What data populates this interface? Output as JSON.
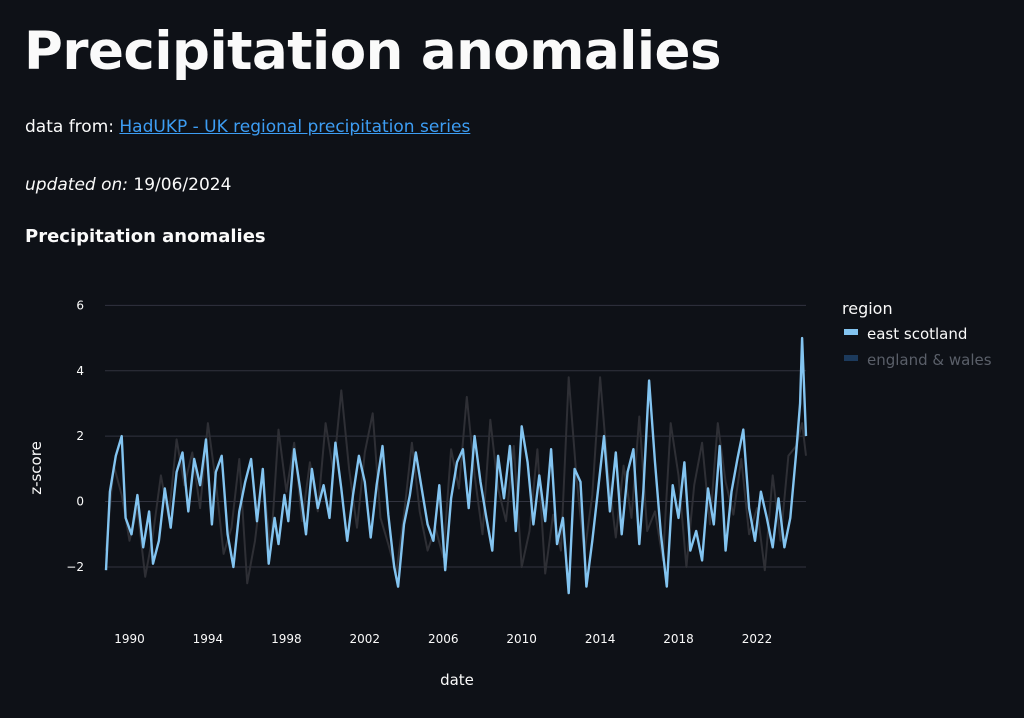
{
  "page": {
    "title": "Precipitation anomalies",
    "source_prefix": "data from: ",
    "source_link": "HadUKP - UK regional precipitation series",
    "updated_label": "updated on:",
    "updated_date": " 19/06/2024",
    "chart_title": "Precipitation anomalies"
  },
  "colors": {
    "background": "#0e1117",
    "link": "#3d9df3",
    "east_scotland": "#83c4f0",
    "england_wales": "#2e2f35",
    "grid": "#31333f"
  },
  "chart_data": {
    "type": "line",
    "xlabel": "date",
    "ylabel": "z-score",
    "xlim": [
      1988.75,
      2024.5
    ],
    "ylim": [
      -3.5,
      6.5
    ],
    "x_ticks": [
      "1990",
      "1994",
      "1998",
      "2002",
      "2006",
      "2010",
      "2014",
      "2018",
      "2022"
    ],
    "y_ticks": [
      "−2",
      "0",
      "2",
      "4",
      "6"
    ],
    "grid": "horizontal",
    "legend": {
      "title": "region",
      "placement": "right",
      "entries": [
        {
          "name": "east scotland",
          "active": true
        },
        {
          "name": "england & wales",
          "active": false
        }
      ]
    },
    "series": [
      {
        "name": "east scotland",
        "x": [
          1988.8,
          1989.0,
          1989.3,
          1989.6,
          1989.8,
          1990.1,
          1990.4,
          1990.7,
          1991.0,
          1991.2,
          1991.5,
          1991.8,
          1992.1,
          1992.4,
          1992.7,
          1993.0,
          1993.3,
          1993.6,
          1993.9,
          1994.2,
          1994.4,
          1994.7,
          1995.0,
          1995.3,
          1995.6,
          1995.9,
          1996.2,
          1996.5,
          1996.8,
          1997.1,
          1997.4,
          1997.6,
          1997.9,
          1998.1,
          1998.4,
          1998.7,
          1999.0,
          1999.3,
          1999.6,
          1999.9,
          2000.2,
          2000.5,
          2000.8,
          2001.1,
          2001.4,
          2001.7,
          2002.0,
          2002.3,
          2002.6,
          2002.9,
          2003.2,
          2003.5,
          2003.7,
          2004.0,
          2004.3,
          2004.6,
          2004.9,
          2005.2,
          2005.5,
          2005.8,
          2006.1,
          2006.4,
          2006.7,
          2007.0,
          2007.3,
          2007.6,
          2007.9,
          2008.2,
          2008.5,
          2008.8,
          2009.1,
          2009.4,
          2009.7,
          2010.0,
          2010.3,
          2010.6,
          2010.9,
          2011.2,
          2011.5,
          2011.8,
          2012.1,
          2012.4,
          2012.7,
          2013.0,
          2013.3,
          2013.6,
          2013.9,
          2014.2,
          2014.5,
          2014.8,
          2015.1,
          2015.4,
          2015.7,
          2016.0,
          2016.2,
          2016.5,
          2016.8,
          2017.1,
          2017.4,
          2017.7,
          2018.0,
          2018.3,
          2018.6,
          2018.9,
          2019.2,
          2019.5,
          2019.8,
          2020.1,
          2020.4,
          2020.7,
          2021.0,
          2021.3,
          2021.6,
          2021.9,
          2022.2,
          2022.5,
          2022.8,
          2023.1,
          2023.4,
          2023.7,
          2024.0,
          2024.2,
          2024.3,
          2024.5
        ],
        "y": [
          -2.1,
          0.3,
          1.4,
          2.0,
          -0.5,
          -1.0,
          0.2,
          -1.4,
          -0.3,
          -1.9,
          -1.2,
          0.4,
          -0.8,
          0.9,
          1.5,
          -0.3,
          1.3,
          0.5,
          1.9,
          -0.7,
          0.9,
          1.4,
          -1.0,
          -2.0,
          -0.3,
          0.6,
          1.3,
          -0.6,
          1.0,
          -1.9,
          -0.5,
          -1.3,
          0.2,
          -0.6,
          1.6,
          0.4,
          -1.0,
          1.0,
          -0.2,
          0.5,
          -0.5,
          1.8,
          0.4,
          -1.2,
          0.2,
          1.4,
          0.6,
          -1.1,
          0.5,
          1.7,
          -0.4,
          -2.0,
          -2.6,
          -0.7,
          0.2,
          1.5,
          0.4,
          -0.7,
          -1.2,
          0.5,
          -2.1,
          0.1,
          1.2,
          1.6,
          -0.2,
          2.0,
          0.6,
          -0.5,
          -1.5,
          1.4,
          0.1,
          1.7,
          -0.9,
          2.3,
          1.2,
          -0.7,
          0.8,
          -0.6,
          1.6,
          -1.3,
          -0.5,
          -2.8,
          1.0,
          0.6,
          -2.6,
          -1.2,
          0.4,
          2.0,
          -0.3,
          1.5,
          -1.0,
          0.9,
          1.6,
          -1.3,
          0.3,
          3.7,
          1.2,
          -1.0,
          -2.6,
          0.5,
          -0.5,
          1.2,
          -1.5,
          -0.9,
          -1.8,
          0.4,
          -0.7,
          1.7,
          -1.5,
          0.3,
          1.3,
          2.2,
          -0.2,
          -1.2,
          0.3,
          -0.5,
          -1.4,
          0.1,
          -1.4,
          -0.5,
          1.5,
          3.0,
          5.0,
          2.0
        ]
      },
      {
        "name": "england & wales",
        "x": [
          1988.8,
          1989.2,
          1989.6,
          1990.0,
          1990.4,
          1990.8,
          1991.2,
          1991.6,
          1992.0,
          1992.4,
          1992.8,
          1993.2,
          1993.6,
          1994.0,
          1994.4,
          1994.8,
          1995.2,
          1995.6,
          1996.0,
          1996.4,
          1996.8,
          1997.2,
          1997.6,
          1998.0,
          1998.4,
          1998.8,
          1999.2,
          1999.6,
          2000.0,
          2000.4,
          2000.8,
          2001.2,
          2001.6,
          2002.0,
          2002.4,
          2002.8,
          2003.2,
          2003.6,
          2004.0,
          2004.4,
          2004.8,
          2005.2,
          2005.6,
          2006.0,
          2006.4,
          2006.8,
          2007.2,
          2007.6,
          2008.0,
          2008.4,
          2008.8,
          2009.2,
          2009.6,
          2010.0,
          2010.4,
          2010.8,
          2011.2,
          2011.6,
          2012.0,
          2012.4,
          2012.8,
          2013.2,
          2013.6,
          2014.0,
          2014.4,
          2014.8,
          2015.2,
          2015.6,
          2016.0,
          2016.4,
          2016.8,
          2017.2,
          2017.6,
          2018.0,
          2018.4,
          2018.8,
          2019.2,
          2019.6,
          2020.0,
          2020.4,
          2020.8,
          2021.2,
          2021.6,
          2022.0,
          2022.4,
          2022.8,
          2023.2,
          2023.6,
          2024.0,
          2024.3,
          2024.5
        ],
        "y": [
          -1.5,
          1.1,
          0.2,
          -1.2,
          -0.2,
          -2.3,
          -1.0,
          0.8,
          -0.5,
          1.9,
          0.5,
          1.5,
          -0.2,
          2.4,
          0.6,
          -1.6,
          -0.8,
          1.3,
          -2.5,
          -1.2,
          0.8,
          -1.5,
          2.2,
          0.3,
          1.8,
          -0.6,
          1.2,
          -0.3,
          2.4,
          0.9,
          3.4,
          1.0,
          -0.8,
          1.5,
          2.7,
          -0.5,
          -1.3,
          -2.2,
          -0.4,
          1.8,
          -0.3,
          -1.5,
          -0.8,
          -1.7,
          1.6,
          0.4,
          3.2,
          0.8,
          -1.0,
          2.5,
          0.4,
          -0.6,
          1.7,
          -2.0,
          -0.9,
          1.6,
          -2.2,
          -0.4,
          -1.5,
          3.8,
          0.7,
          -1.6,
          0.2,
          3.8,
          0.9,
          -1.1,
          1.1,
          -0.5,
          2.6,
          -0.9,
          -0.3,
          -1.8,
          2.4,
          0.8,
          -2.0,
          0.5,
          1.8,
          -0.7,
          2.4,
          0.6,
          -0.4,
          1.3,
          -1.0,
          -0.2,
          -2.1,
          0.8,
          -1.2,
          1.4,
          1.7,
          2.4,
          1.4
        ]
      }
    ]
  }
}
